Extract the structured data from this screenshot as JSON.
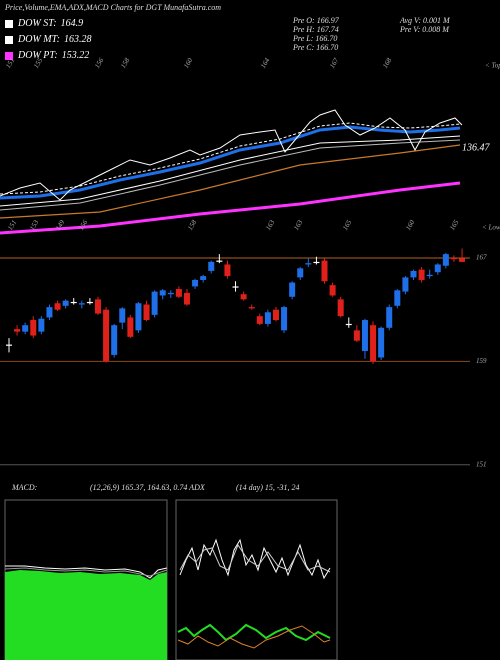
{
  "title": "Price,Volume,EMA,ADX,MACD Charts for DGT MunafaSutra.com",
  "legend": [
    {
      "name": "DOW ST:",
      "value": 164.9,
      "color": "#ffffff"
    },
    {
      "name": "DOW MT:",
      "value": 163.28,
      "color": "#ffffff"
    },
    {
      "name": "DOW PT:",
      "value": 153.22,
      "color": "#ff33ff"
    }
  ],
  "quote": [
    [
      "Pre  O: 166.97",
      "Avg V: 0.001 M"
    ],
    [
      "Pre  H: 167.74",
      "Pre  V: 0.008 M"
    ],
    [
      "Pre  L: 166.70"
    ],
    [
      "Pre  C: 166.70"
    ]
  ],
  "indicators": {
    "macd_title": "MACD:",
    "macd_text": "(12,26,9) 165.37, 164.63, 0.74 ADX",
    "adx_text": "(14 day) 15, -31, 24"
  },
  "chart_data": [
    {
      "type": "candlestick",
      "ylim": [
        149,
        169.5
      ],
      "yticks": [
        167,
        159,
        151
      ],
      "up_color": "#1e6fe8",
      "down_color": "#e0201a",
      "flat_color": "#ffffff",
      "tops_label": "< Tops",
      "lows_label": "< Lows",
      "top_labels": [
        151,
        155,
        156,
        158,
        160,
        164,
        167,
        168
      ],
      "low_labels": [
        151,
        153,
        149,
        156,
        158,
        163,
        163,
        165,
        160,
        165
      ],
      "ema_label": 136.47,
      "ohlc": [
        [
          160.3,
          160.8,
          159.7,
          160.3
        ],
        [
          161.5,
          161.8,
          161.0,
          161.3
        ],
        [
          161.3,
          162.0,
          161.1,
          161.8
        ],
        [
          162.2,
          162.5,
          160.8,
          161.0
        ],
        [
          161.3,
          162.5,
          161.1,
          162.3
        ],
        [
          162.4,
          163.4,
          162.2,
          163.2
        ],
        [
          163.5,
          163.7,
          162.9,
          163.0
        ],
        [
          163.3,
          163.8,
          163.1,
          163.7
        ],
        [
          163.6,
          163.9,
          163.4,
          163.6
        ],
        [
          163.4,
          163.7,
          163.1,
          163.5
        ],
        [
          163.6,
          163.9,
          163.4,
          163.6
        ],
        [
          163.8,
          164.0,
          162.6,
          162.7
        ],
        [
          163.0,
          163.2,
          158.9,
          159.0
        ],
        [
          159.5,
          161.9,
          159.3,
          161.8
        ],
        [
          162.0,
          163.2,
          161.5,
          163.1
        ],
        [
          162.4,
          162.6,
          160.8,
          160.9
        ],
        [
          161.4,
          163.6,
          161.2,
          163.5
        ],
        [
          163.4,
          163.7,
          162.1,
          162.2
        ],
        [
          162.6,
          164.5,
          162.4,
          164.4
        ],
        [
          164.1,
          164.6,
          163.8,
          164.5
        ],
        [
          164.2,
          164.5,
          163.9,
          164.3
        ],
        [
          164.6,
          164.8,
          163.9,
          164.0
        ],
        [
          164.3,
          164.6,
          163.3,
          163.4
        ],
        [
          164.8,
          165.4,
          164.6,
          165.3
        ],
        [
          165.3,
          165.7,
          165.1,
          165.6
        ],
        [
          166.0,
          166.8,
          165.8,
          166.7
        ],
        [
          166.8,
          167.3,
          166.6,
          166.8
        ],
        [
          166.5,
          166.8,
          165.4,
          165.6
        ],
        [
          164.8,
          165.2,
          164.4,
          164.8
        ],
        [
          164.2,
          164.4,
          163.7,
          163.8
        ],
        [
          163.2,
          163.4,
          163.0,
          163.1
        ],
        [
          162.5,
          162.7,
          161.8,
          161.9
        ],
        [
          161.9,
          163.0,
          161.7,
          162.8
        ],
        [
          163.0,
          163.2,
          162.1,
          162.2
        ],
        [
          161.4,
          163.3,
          161.2,
          163.2
        ],
        [
          164.0,
          165.2,
          163.8,
          165.1
        ],
        [
          165.5,
          166.3,
          165.3,
          166.2
        ],
        [
          166.5,
          167.0,
          166.3,
          166.6
        ],
        [
          166.7,
          167.1,
          166.5,
          166.7
        ],
        [
          166.8,
          167.0,
          165.0,
          165.2
        ],
        [
          164.9,
          165.1,
          164.0,
          164.1
        ],
        [
          163.8,
          164.0,
          162.4,
          162.5
        ],
        [
          161.9,
          162.4,
          161.6,
          161.9
        ],
        [
          161.4,
          161.8,
          160.5,
          160.6
        ],
        [
          159.8,
          162.3,
          159.2,
          162.2
        ],
        [
          161.8,
          162.1,
          158.8,
          159.0
        ],
        [
          159.3,
          161.7,
          159.1,
          161.6
        ],
        [
          161.6,
          163.4,
          161.4,
          163.2
        ],
        [
          163.3,
          164.6,
          163.1,
          164.5
        ],
        [
          164.4,
          165.6,
          164.2,
          165.5
        ],
        [
          165.5,
          166.1,
          165.3,
          166.0
        ],
        [
          166.1,
          166.3,
          165.1,
          165.3
        ],
        [
          165.6,
          166.1,
          165.4,
          165.7
        ],
        [
          165.9,
          166.6,
          165.7,
          166.5
        ],
        [
          166.4,
          167.4,
          166.2,
          167.3
        ],
        [
          167.0,
          167.2,
          166.7,
          166.9
        ],
        [
          166.97,
          167.74,
          166.7,
          166.7
        ]
      ]
    }
  ]
}
